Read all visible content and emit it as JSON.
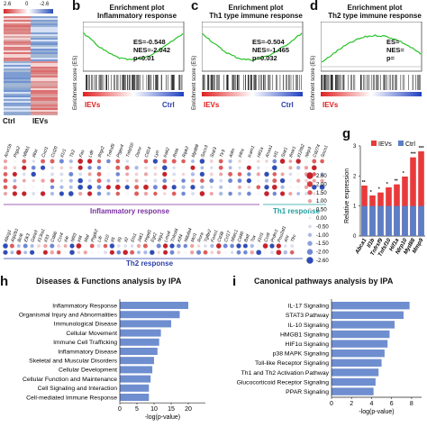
{
  "heatmap": {
    "scale_max": "2.6",
    "scale_mid": "0",
    "scale_min": "-2.6",
    "col_left": "Ctrl",
    "col_right": "IEVs"
  },
  "gsea": [
    {
      "panel_label": "b",
      "title1": "Enrichment plot",
      "title2": "Inflammatory response",
      "es": "ES=-0.548",
      "nes": "NES=-2.042",
      "p": "p<0.01",
      "left_label": "IEVs",
      "right_label": "Ctrl",
      "ylabel": "Enrichment score (ES)"
    },
    {
      "panel_label": "c",
      "title1": "Enrichment plot",
      "title2": "Th1 type immune response",
      "es": "ES=-0.504",
      "nes": "NES=-1.465",
      "p": "p=0.032",
      "left_label": "IEVs",
      "right_label": "Ctrl",
      "ylabel": "Enrichment score (ES)"
    },
    {
      "panel_label": "d",
      "title1": "Enrichment plot",
      "title2": "Th2 type immune response",
      "es": "ES=",
      "nes": "NES=",
      "p": "p=",
      "left_label": "IEVs",
      "right_label": "",
      "ylabel": "Enrichment score (ES)"
    }
  ],
  "dotplot": {
    "section1": "Inflammatory response",
    "section2": "Th1 response",
    "section3": "Th2 response",
    "genes_top": [
      "Acvr1b",
      "Ptgs2",
      "Nfkb1",
      "Il6st",
      "Cxcl1",
      "Ccl20",
      "Il1r1",
      "Tlr2",
      "Fas",
      "Ldlr",
      "Ifngr2",
      "Tnfrsf9",
      "Ptger4",
      "Tnfsf10",
      "Osmr",
      "Cd14",
      "Lyn",
      "Irak2",
      "Rela",
      "Ripk2",
      "Myd88",
      "Socs3",
      "Stat3",
      "Tlr3",
      "Adm",
      "Il4ra",
      "Icam1",
      "Hif1a"
    ],
    "genes_th1": [
      "Anxa1",
      "Irf1",
      "Stat1",
      "Ifnar1",
      "Il12rb2",
      "Nlrp3",
      "Cd274",
      "Socs1"
    ],
    "genes_th2": [
      "Abcg1",
      "Atp2b1",
      "Bcl6",
      "Elk3",
      "Gata3",
      "Il13ra1",
      "Il33",
      "Cd86",
      "Ccr4",
      "Il4r",
      "Nfil3",
      "Irf4",
      "Maf",
      "Ptgdr2",
      "Lifr",
      "Il10",
      "Il5",
      "Il9",
      "Il2",
      "Ets1",
      "Jak1",
      "Hspd1",
      "Egr2",
      "Nrp1",
      "Lmo4",
      "Tnfrsf4",
      "Klf4",
      "Ndufa4",
      "Mcl1",
      "Rora",
      "Tgfbr2",
      "Foxo1",
      "Cd38",
      "Ccl17",
      "Nfatc1",
      "Cd40",
      "Batf",
      "Tox",
      "Il1rl1",
      "Ccr8",
      "Prdm1",
      "Pou2af1",
      "Ahr",
      "Tfrc"
    ],
    "legend_values": [
      "2.60",
      "2.00",
      "1.50",
      "1.00",
      "0.50",
      "0.00",
      "-0.50",
      "-1.00",
      "-1.50",
      "-2.00",
      "-2.60"
    ]
  },
  "chart_data": [
    {
      "type": "bar",
      "panel": "g",
      "title": "",
      "ylabel": "Relative expression",
      "ylim": [
        0,
        3
      ],
      "categories": [
        "Abca1",
        "Il1b",
        "Tnfrsf9",
        "Tnfsf10",
        "Hif1a",
        "Nlrp10",
        "Myd88",
        "Mmp9"
      ],
      "series": [
        {
          "name": "IEVs",
          "color": "#e83a3a",
          "values": [
            1.68,
            1.35,
            1.45,
            1.62,
            1.72,
            1.98,
            2.62,
            2.82
          ]
        },
        {
          "name": "Ctrl",
          "color": "#5b7fc6",
          "values": [
            1.0,
            1.0,
            1.0,
            1.0,
            1.0,
            1.0,
            1.0,
            1.0
          ]
        }
      ],
      "annotations": [
        "**",
        "*",
        "*",
        "*",
        "**",
        "*",
        "***",
        "***"
      ]
    },
    {
      "type": "bar",
      "panel": "h",
      "title": "Diseases & Functions analysis by IPA",
      "xlabel": "-log(p-value)",
      "xlim": [
        0,
        25
      ],
      "xticks": [
        "0",
        "5",
        "10",
        "15",
        "20"
      ],
      "categories": [
        "Inflammatory Response",
        "Organismal Injury and Abnormalities",
        "Immunological Disease",
        "Cellular Movement",
        "Immune Cell Trafficking",
        "Inflammatory Disease",
        "Skeletal and Muscular Disorders",
        "Cellular Development",
        "Cellular Function and Maintenance",
        "Cell Signaling and Interaction",
        "Cell-mediated Immune Response"
      ],
      "values": [
        20.0,
        17.5,
        15.0,
        12.0,
        11.5,
        11.0,
        10.0,
        9.5,
        9.0,
        8.5,
        8.5
      ],
      "color": "#6f8ecf"
    },
    {
      "type": "bar",
      "panel": "i",
      "title": "Canonical pathways analysis by IPA",
      "xlabel": "-log(p-value)",
      "xlim": [
        0,
        9
      ],
      "xticks": [
        "0",
        "2",
        "4",
        "6",
        "8"
      ],
      "categories": [
        "IL-17 Signaling",
        "STAT3 Pathway",
        "IL-10 Signaling",
        "HMGB1 Signaling",
        "HIF1α Signaling",
        "p38 MAPK Signaling",
        "Toll-like Receptor Signaling",
        "Th1 and Th2 Activation Pathway",
        "Glucocorticoid Receptor Signaling",
        "PPAR Signaling"
      ],
      "values": [
        7.8,
        7.2,
        6.3,
        5.8,
        5.6,
        5.3,
        5.0,
        4.7,
        4.4,
        4.2
      ],
      "color": "#6f8ecf"
    }
  ],
  "labels": {
    "g": "g",
    "h": "h",
    "i": "i",
    "g_legend_ievs": "IEVs",
    "g_legend_ctrl": "Ctrl"
  }
}
